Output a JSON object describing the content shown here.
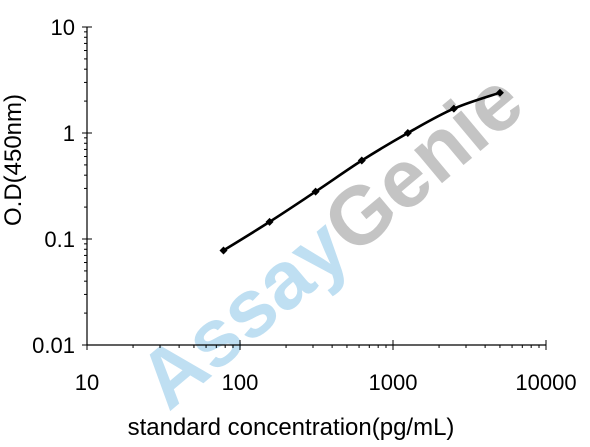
{
  "chart_data": {
    "type": "line",
    "title": "",
    "xlabel": "standard concentration(pg/mL)",
    "ylabel": "O.D(450nm)",
    "xscale": "log",
    "yscale": "log",
    "xlim": [
      10,
      10000
    ],
    "ylim": [
      0.01,
      10
    ],
    "xticks": [
      10,
      100,
      1000,
      10000
    ],
    "xtick_labels": [
      "10",
      "100",
      "1000",
      "10000"
    ],
    "yticks": [
      0.01,
      0.1,
      1,
      10
    ],
    "ytick_labels": [
      "0.01",
      "0.1",
      "1",
      "10"
    ],
    "grid": false,
    "legend": "none",
    "series": [
      {
        "x": [
          78,
          156,
          312,
          625,
          1250,
          2500,
          5000
        ],
        "y": [
          0.078,
          0.145,
          0.28,
          0.55,
          1.0,
          1.7,
          2.4
        ]
      }
    ],
    "colors": {
      "line": "#000000",
      "marker": "#000000",
      "watermark_blue": "#a9d4ee",
      "watermark_gray": "#b0b0b0"
    }
  },
  "watermark": {
    "part1": "Assay",
    "part2": "Genie"
  }
}
